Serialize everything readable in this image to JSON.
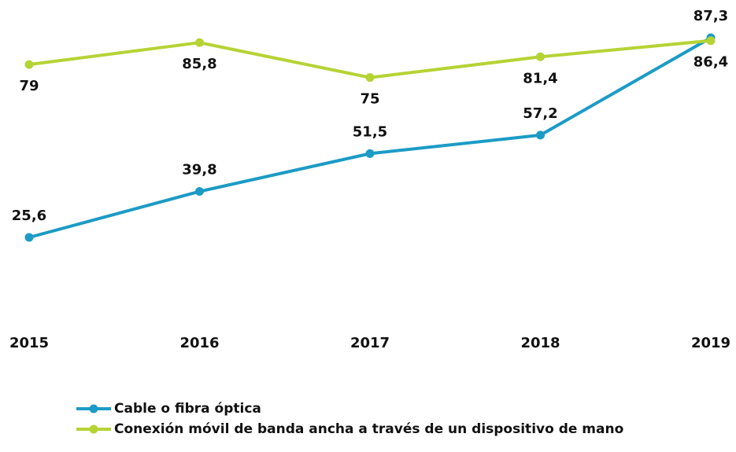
{
  "chart_data": {
    "type": "line",
    "categories": [
      "2015",
      "2016",
      "2017",
      "2018",
      "2019"
    ],
    "series": [
      {
        "name": "Cable o fibra óptica",
        "color": "#1b9bc6",
        "values": [
          25.6,
          39.8,
          51.5,
          57.2,
          87.3
        ],
        "value_labels": [
          "25,6",
          "39,8",
          "51,5",
          "57,2",
          "87,3"
        ]
      },
      {
        "name": "Conexión móvil de banda ancha a través de un dispositivo de mano",
        "color": "#b5d334",
        "values": [
          79,
          85.8,
          75,
          81.4,
          86.4
        ],
        "value_labels": [
          "79",
          "85,8",
          "75",
          "81,4",
          "86,4"
        ]
      }
    ]
  }
}
